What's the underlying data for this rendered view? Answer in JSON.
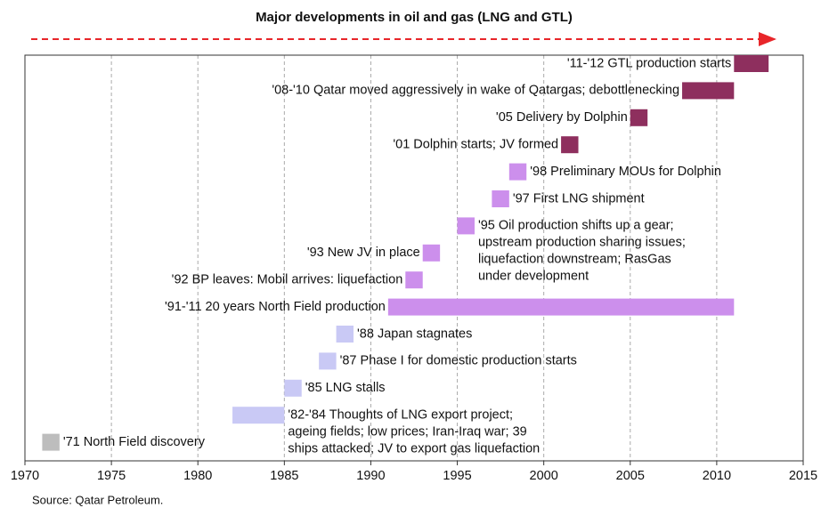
{
  "chart_data": {
    "type": "gantt",
    "title": "Major developments in oil and gas (LNG and GTL)",
    "source": "Source: Qatar Petroleum.",
    "xlim": [
      1970,
      2015
    ],
    "xticks": [
      1970,
      1975,
      1980,
      1985,
      1990,
      1995,
      2000,
      2005,
      2010,
      2015
    ],
    "grid": true,
    "tasks": [
      {
        "label": [
          "'11-'12 GTL production starts"
        ],
        "start": 2011,
        "end": 2013,
        "color": "#8e2f5e",
        "label_position": "left"
      },
      {
        "label": [
          "'08-'10 Qatar moved aggressively in wake of Qatargas; debottlenecking"
        ],
        "start": 2008,
        "end": 2011,
        "color": "#8e2f5e",
        "label_position": "left"
      },
      {
        "label": [
          "'05 Delivery by Dolphin"
        ],
        "start": 2005,
        "end": 2006,
        "color": "#8e2f5e",
        "label_position": "left"
      },
      {
        "label": [
          "'01 Dolphin starts; JV formed"
        ],
        "start": 2001,
        "end": 2002,
        "color": "#8e2f5e",
        "label_position": "left"
      },
      {
        "label": [
          "'98 Preliminary MOUs for Dolphin"
        ],
        "start": 1998,
        "end": 1999,
        "color": "#cc8fec",
        "label_position": "right"
      },
      {
        "label": [
          "'97 First LNG shipment"
        ],
        "start": 1997,
        "end": 1998,
        "color": "#cc8fec",
        "label_position": "right"
      },
      {
        "label": [
          "'95 Oil production shifts up a gear;",
          "upstream production sharing issues;",
          "liquefaction downstream; RasGas",
          "under development"
        ],
        "start": 1995,
        "end": 1996,
        "color": "#cc8fec",
        "label_position": "right"
      },
      {
        "label": [
          "'93 New JV in place"
        ],
        "start": 1993,
        "end": 1994,
        "color": "#cc8fec",
        "label_position": "left"
      },
      {
        "label": [
          "'92 BP leaves: Mobil arrives: liquefaction"
        ],
        "start": 1992,
        "end": 1993,
        "color": "#cc8fec",
        "label_position": "left"
      },
      {
        "label": [
          "'91-'11 20 years North Field production"
        ],
        "start": 1991,
        "end": 2011,
        "color": "#cc8fec",
        "label_position": "left"
      },
      {
        "label": [
          "'88 Japan stagnates"
        ],
        "start": 1988,
        "end": 1989,
        "color": "#c9c9f5",
        "label_position": "right"
      },
      {
        "label": [
          "'87 Phase I for domestic production starts"
        ],
        "start": 1987,
        "end": 1988,
        "color": "#c9c9f5",
        "label_position": "right"
      },
      {
        "label": [
          "'85 LNG stalls"
        ],
        "start": 1985,
        "end": 1986,
        "color": "#c9c9f5",
        "label_position": "right"
      },
      {
        "label": [
          "'82-'84 Thoughts of LNG export project;",
          "ageing fields; low prices; Iran-Iraq war; 39",
          "ships attacked; JV to export gas liquefaction"
        ],
        "start": 1982,
        "end": 1985,
        "color": "#c9c9f5",
        "label_position": "right"
      },
      {
        "label": [
          "'71 North Field discovery"
        ],
        "start": 1971,
        "end": 1972,
        "color": "#bdbdbd",
        "label_position": "right"
      }
    ]
  }
}
